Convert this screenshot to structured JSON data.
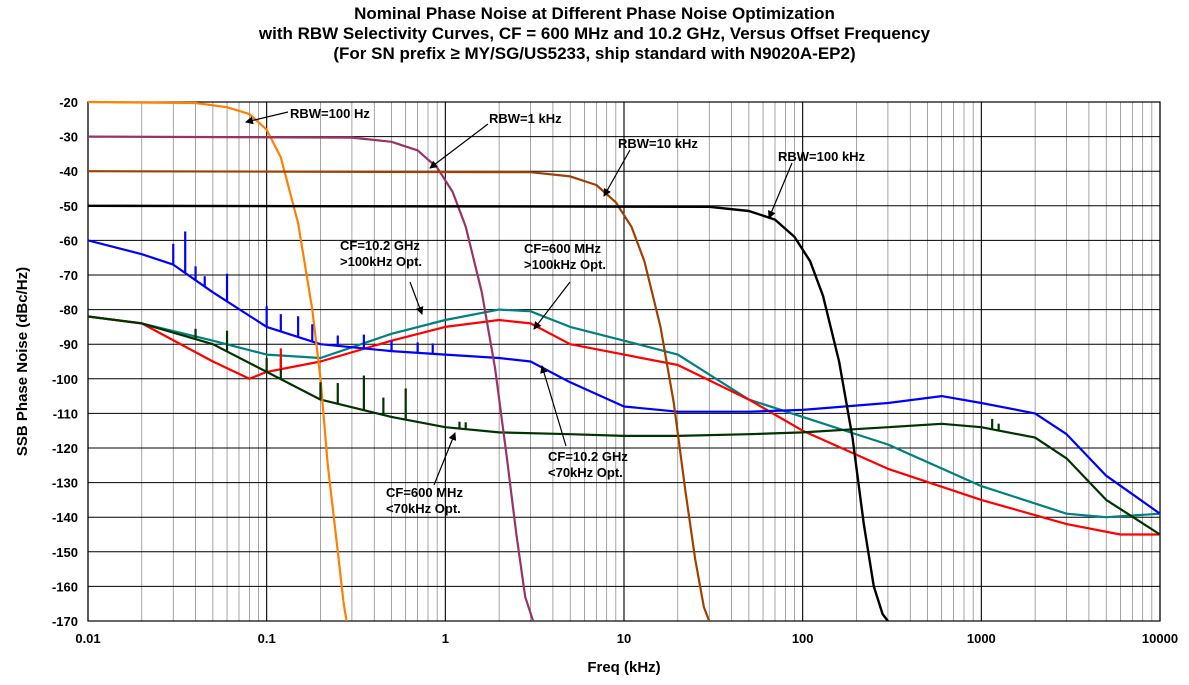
{
  "title_lines": [
    "Nominal Phase Noise at Different Phase Noise Optimization",
    "with RBW Selectivity Curves, CF = 600 MHz and 10.2 GHz, Versus Offset Frequency",
    "(For SN prefix ≥ MY/SG/US5233, ship standard with N9020A-EP2)"
  ],
  "chart_data": {
    "type": "line",
    "title": "Nominal Phase Noise at Different Phase Noise Optimization with RBW Selectivity Curves, CF = 600 MHz and 10.2 GHz, Versus Offset Frequency (For SN prefix ≥ MY/SG/US5233, ship standard with N9020A-EP2)",
    "xlabel": "Freq (kHz)",
    "ylabel": "SSB Phase Noise (dBc/Hz)",
    "x_scale": "log",
    "xlim": [
      0.01,
      10000
    ],
    "ylim": [
      -170,
      -20
    ],
    "x_ticks": [
      0.01,
      0.1,
      1,
      10,
      100,
      1000,
      10000
    ],
    "x_tick_labels": [
      "0.01",
      "0.1",
      "1",
      "10",
      "100",
      "1000",
      "10000"
    ],
    "y_ticks": [
      -20,
      -30,
      -40,
      -50,
      -60,
      -70,
      -80,
      -90,
      -100,
      -110,
      -120,
      -130,
      -140,
      -150,
      -160,
      -170
    ],
    "y_tick_labels": [
      "-20",
      "-30",
      "-40",
      "-50",
      "-60",
      "-70",
      "-80",
      "-90",
      "-100",
      "-110",
      "-120",
      "-130",
      "-140",
      "-150",
      "-160",
      "-170"
    ],
    "grid": true,
    "legend": "none (series identified by annotations)",
    "series": [
      {
        "color": "#ff8000",
        "x": [
          0.01,
          0.04,
          0.06,
          0.08,
          0.1,
          0.12,
          0.15,
          0.18,
          0.2,
          0.22,
          0.25,
          0.27,
          0.28
        ],
        "y": [
          -20,
          -20.3,
          -21.5,
          -23.5,
          -28,
          -36,
          -55,
          -80,
          -100,
          -125,
          -150,
          -165,
          -170
        ]
      },
      {
        "color": "#993366",
        "x": [
          0.01,
          0.3,
          0.5,
          0.7,
          0.9,
          1.1,
          1.3,
          1.6,
          1.9,
          2.2,
          2.5,
          2.8,
          3.1
        ],
        "y": [
          -30,
          -30.3,
          -31.5,
          -34,
          -39,
          -46,
          -56,
          -75,
          -97,
          -122,
          -145,
          -163,
          -170
        ]
      },
      {
        "color": "#a04000",
        "x": [
          0.01,
          3,
          5,
          7,
          9,
          11,
          13,
          16,
          19,
          22,
          25,
          28,
          30
        ],
        "y": [
          -40,
          -40.3,
          -41.5,
          -44,
          -49,
          -56,
          -66,
          -85,
          -107,
          -132,
          -152,
          -166,
          -170
        ]
      },
      {
        "color": "#000000",
        "x": [
          0.01,
          30,
          50,
          70,
          90,
          110,
          130,
          160,
          190,
          220,
          250,
          280,
          300
        ],
        "y": [
          -50,
          -50.3,
          -51.5,
          -54,
          -59,
          -66,
          -76,
          -95,
          -117,
          -142,
          -160,
          -168,
          -170
        ]
      },
      {
        "color": "#008080",
        "x": [
          0.01,
          0.02,
          0.05,
          0.1,
          0.2,
          0.5,
          1,
          2,
          3,
          5,
          10,
          20,
          50,
          100,
          300,
          1000,
          3000,
          5000,
          10000
        ],
        "y": [
          -82,
          -84,
          -89,
          -93,
          -94,
          -87,
          -83,
          -80,
          -80.5,
          -85,
          -89,
          -93,
          -106,
          -111,
          -119,
          -131,
          -139,
          -140,
          -139
        ]
      },
      {
        "color": "#ff0000",
        "x": [
          0.01,
          0.02,
          0.05,
          0.08,
          0.1,
          0.2,
          0.5,
          1,
          2,
          3,
          5,
          10,
          20,
          50,
          100,
          300,
          1000,
          3000,
          6000,
          10000
        ],
        "y": [
          -82,
          -84,
          -95,
          -100,
          -98,
          -95,
          -89,
          -85,
          -83,
          -84,
          -90,
          -93,
          -96,
          -106,
          -115,
          -126,
          -135,
          -142,
          -145,
          -145
        ]
      },
      {
        "color": "#0000ff",
        "x": [
          0.01,
          0.02,
          0.03,
          0.05,
          0.1,
          0.2,
          0.5,
          1,
          2,
          3,
          5,
          10,
          20,
          50,
          100,
          300,
          600,
          1000,
          2000,
          3000,
          5000,
          10000
        ],
        "y": [
          -60,
          -64,
          -67,
          -75,
          -85,
          -90,
          -92,
          -93,
          -94,
          -95,
          -101,
          -108,
          -109.5,
          -109.5,
          -109,
          -107,
          -105,
          -107,
          -110,
          -116,
          -128,
          -139
        ]
      },
      {
        "color": "#003300",
        "x": [
          0.01,
          0.02,
          0.05,
          0.1,
          0.2,
          0.5,
          1,
          2,
          5,
          10,
          20,
          50,
          100,
          300,
          600,
          1000,
          2000,
          3000,
          5000,
          10000
        ],
        "y": [
          -82,
          -84,
          -90,
          -98,
          -106,
          -111,
          -114,
          -115.5,
          -116,
          -116.5,
          -116.5,
          -116,
          -115.5,
          -114,
          -113,
          -114,
          -117,
          -123,
          -135,
          -145
        ]
      }
    ],
    "annotations": [
      {
        "text": "RBW=100 Hz"
      },
      {
        "text": "RBW=1 kHz"
      },
      {
        "text": "RBW=10 kHz"
      },
      {
        "text": "RBW=100 kHz"
      },
      {
        "text": "CF=10.2 GHz\n>100kHz Opt."
      },
      {
        "text": "CF=600 MHz\n>100kHz Opt."
      },
      {
        "text": "CF=10.2 GHz\n<70kHz Opt."
      },
      {
        "text": "CF=600 MHz\n<70kHz Opt."
      }
    ]
  }
}
